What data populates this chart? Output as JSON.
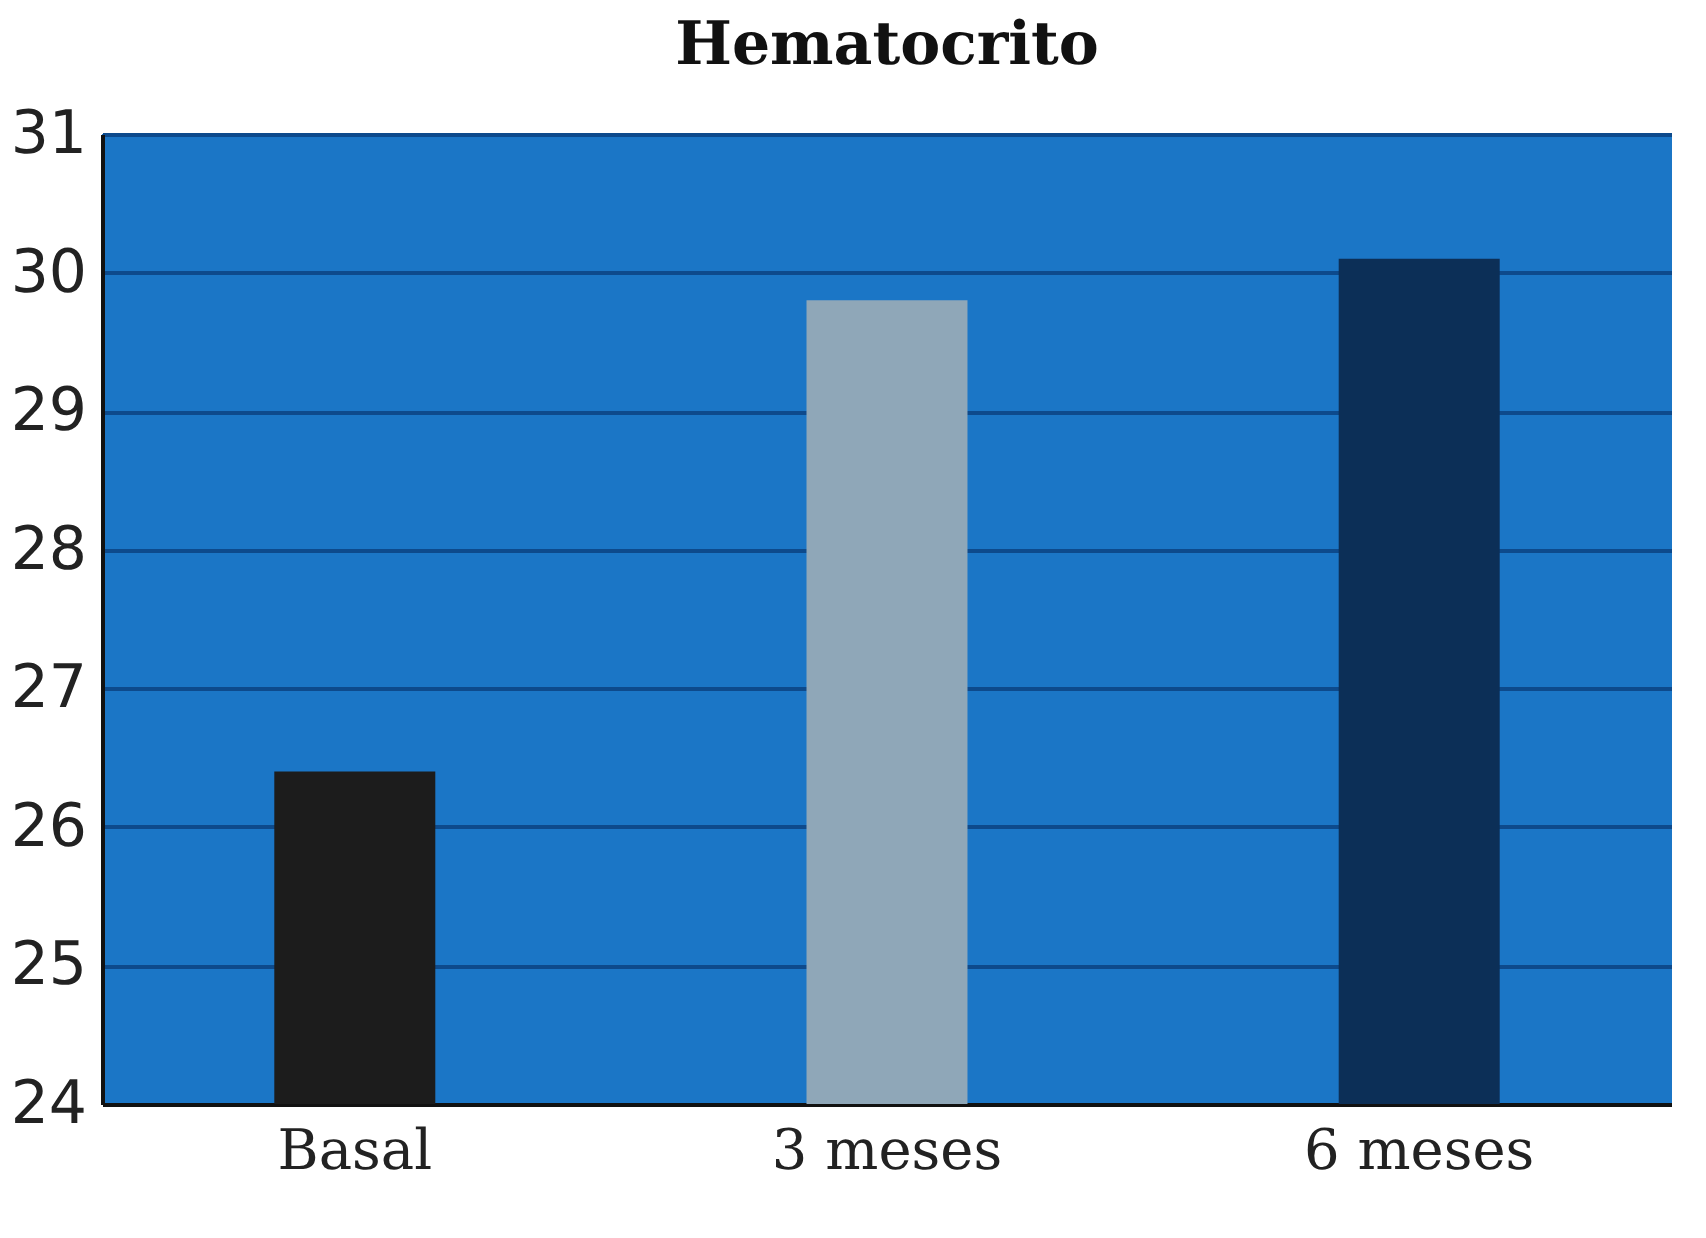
{
  "chart_data": {
    "type": "bar",
    "title": "Hematocrito",
    "categories": [
      "Basal",
      "3 meses",
      "6 meses"
    ],
    "values": [
      26.4,
      29.8,
      30.1
    ],
    "colors": [
      "#1c1c1c",
      "#8fa7b8",
      "#0c2f57"
    ],
    "ylim": [
      24,
      31
    ],
    "yticks": [
      24,
      25,
      26,
      27,
      28,
      29,
      30,
      31
    ],
    "grid": "y"
  }
}
